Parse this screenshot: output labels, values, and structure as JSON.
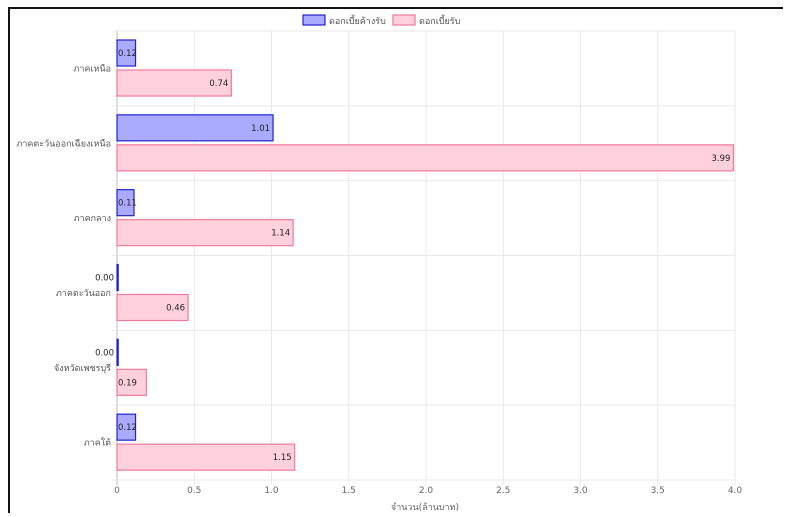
{
  "chart_data": {
    "type": "bar",
    "orientation": "horizontal",
    "categories": [
      "ภาคเหนือ",
      "ภาคตะวันออกเฉียงเหนือ",
      "ภาคกลาง",
      "ภาคตะวันออก",
      "จังหวัดเพชรบุรี",
      "ภาคใต้"
    ],
    "series": [
      {
        "name": "ดอกเบี้ยค้างรับ",
        "values": [
          0.12,
          1.01,
          0.11,
          0.0,
          0.0,
          0.12
        ],
        "labels": [
          "0.12",
          "1.01",
          "0.11",
          "0.00",
          "0.00",
          "0.12"
        ],
        "fill": "#aaaaff",
        "stroke": "#2222cc"
      },
      {
        "name": "ดอกเบี้ยรับ",
        "values": [
          0.74,
          3.99,
          1.14,
          0.46,
          0.19,
          1.15
        ],
        "labels": [
          "0.74",
          "3.99",
          "1.14",
          "0.46",
          "0.19",
          "1.15"
        ],
        "fill": "#ffd1dc",
        "stroke": "#f07a9a"
      }
    ],
    "xlabel": "จำนวน(ล้านบาท)",
    "ylabel": "",
    "xlim": [
      0,
      4.0
    ],
    "xticks": [
      "0",
      "0.5",
      "1.0",
      "1.5",
      "2.0",
      "2.5",
      "3.0",
      "3.5",
      "4.0"
    ],
    "grid": true,
    "legend_position": "top"
  }
}
